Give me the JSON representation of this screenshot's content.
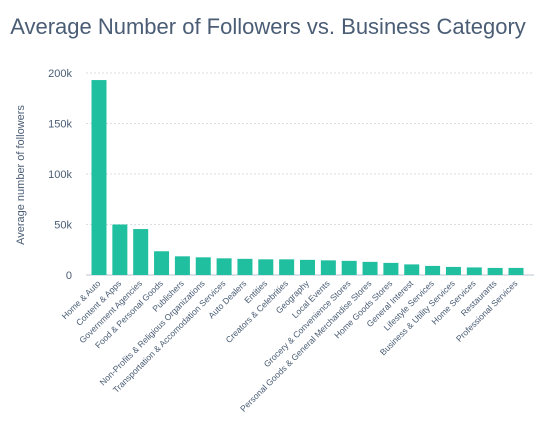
{
  "chart_data": {
    "type": "bar",
    "title": "Average Number of Followers vs. Business Category",
    "xlabel": "",
    "ylabel": "Average number of followers",
    "ylim": [
      0,
      200000
    ],
    "yticks": [
      0,
      50000,
      100000,
      150000,
      200000
    ],
    "ytick_labels": [
      "0",
      "50k",
      "100k",
      "150k",
      "200k"
    ],
    "grid": true,
    "bar_color": "#1fbf9f",
    "categories": [
      "Home & Auto",
      "Content & Apps",
      "Government Agencies",
      "Food & Personal Goods",
      "Publishers",
      "Non-Profits & Religious Organizations",
      "Transportation & Accomodation Services",
      "Auto Dealers",
      "Entities",
      "Creators & Celebrities",
      "Geography",
      "Local Events",
      "Grocery & Convenience Stores",
      "Personal Goods & General Merchandise Stores",
      "Home Goods Stores",
      "General Interest",
      "Lifestyle Services",
      "Business & Utility Services",
      "Home Services",
      "Restaurants",
      "Professional Services"
    ],
    "values": [
      193000,
      50000,
      45500,
      23500,
      18500,
      17500,
      16500,
      16000,
      15500,
      15500,
      15000,
      14500,
      14000,
      13000,
      12000,
      10500,
      9000,
      8000,
      7500,
      7000,
      7000
    ]
  }
}
